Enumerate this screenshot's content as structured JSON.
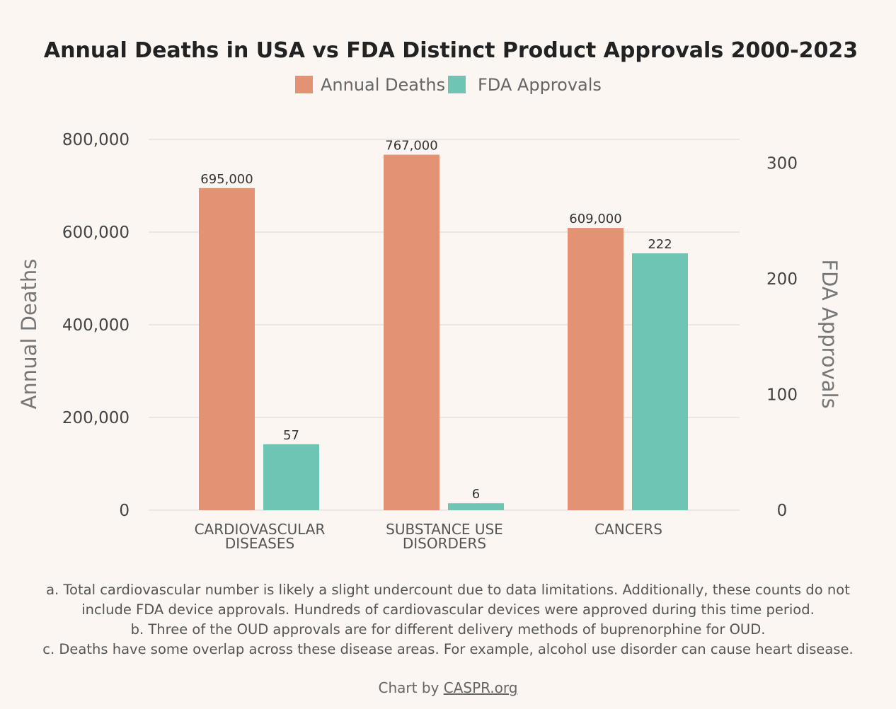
{
  "chart_data": {
    "type": "bar",
    "title": "Annual Deaths in USA vs FDA Distinct Product Approvals 2000-2023",
    "categories": [
      [
        "CARDIOVASCULAR",
        "DISEASES"
      ],
      [
        "SUBSTANCE USE",
        "DISORDERS"
      ],
      [
        "CANCERS"
      ]
    ],
    "series": [
      {
        "name": "Annual Deaths",
        "axis": "left",
        "color": "#e39373",
        "values": [
          695000,
          767000,
          609000
        ],
        "labels": [
          "695,000",
          "767,000",
          "609,000"
        ]
      },
      {
        "name": "FDA Approvals",
        "axis": "right",
        "color": "#6fc5b3",
        "values": [
          57,
          6,
          222
        ],
        "labels": [
          "57",
          "6",
          "222"
        ]
      }
    ],
    "ylabel": "Annual Deaths",
    "y2label": "FDA Approvals",
    "ylim": [
      0,
      800000
    ],
    "y2lim": [
      0,
      320.5
    ],
    "yticks": [
      0,
      200000,
      400000,
      600000,
      800000
    ],
    "ytick_labels": [
      "0",
      "200,000",
      "400,000",
      "600,000",
      "800,000"
    ],
    "y2ticks": [
      0,
      100,
      200,
      300
    ],
    "y2tick_labels": [
      "0",
      "100",
      "200",
      "300"
    ],
    "legend": "top-center",
    "grid": true
  },
  "notes": [
    "a. Total cardiovascular number is likely a slight undercount due to data limitations. Additionally, these counts do not include FDA device approvals. Hundreds of cardiovascular devices were approved during this time period.",
    "b. Three of the OUD approvals are for different delivery methods of buprenorphine for OUD.",
    "c. Deaths have some overlap across these disease areas. For example, alcohol use disorder can cause heart disease."
  ],
  "credit": {
    "prefix": "Chart by ",
    "link": "CASPR.org"
  }
}
